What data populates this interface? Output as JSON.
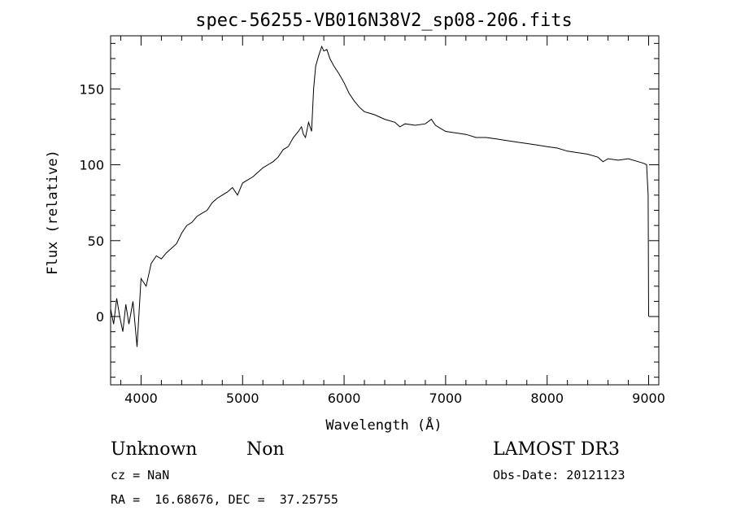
{
  "chart_data": {
    "type": "line",
    "title": "spec-56255-VB016N38V2_sp08-206.fits",
    "xlabel": "Wavelength (Å)",
    "ylabel": "Flux (relative)",
    "xlim": [
      3700,
      9100
    ],
    "ylim": [
      -45,
      185
    ],
    "xticks": [
      4000,
      5000,
      6000,
      7000,
      8000,
      9000
    ],
    "yticks": [
      0,
      50,
      100,
      150
    ],
    "grid": false,
    "series": [
      {
        "color": "#000000",
        "x": [
          3700,
          3730,
          3760,
          3790,
          3820,
          3850,
          3880,
          3920,
          3960,
          4000,
          4050,
          4100,
          4150,
          4200,
          4250,
          4300,
          4350,
          4400,
          4450,
          4500,
          4550,
          4600,
          4650,
          4700,
          4750,
          4800,
          4850,
          4900,
          4950,
          5000,
          5050,
          5100,
          5150,
          5200,
          5250,
          5300,
          5350,
          5400,
          5450,
          5500,
          5550,
          5580,
          5600,
          5620,
          5650,
          5680,
          5700,
          5720,
          5750,
          5780,
          5800,
          5830,
          5860,
          5900,
          5950,
          6000,
          6050,
          6100,
          6150,
          6200,
          6250,
          6300,
          6400,
          6500,
          6550,
          6600,
          6700,
          6800,
          6860,
          6880,
          6900,
          6950,
          7000,
          7100,
          7200,
          7300,
          7400,
          7500,
          7600,
          7700,
          7800,
          7900,
          8000,
          8100,
          8200,
          8300,
          8400,
          8500,
          8550,
          8600,
          8700,
          8800,
          8900,
          8950,
          8980,
          8995,
          9000
        ],
        "y": [
          5,
          -5,
          12,
          0,
          -10,
          8,
          -5,
          10,
          -20,
          25,
          20,
          35,
          40,
          38,
          42,
          45,
          48,
          55,
          60,
          62,
          66,
          68,
          70,
          75,
          78,
          80,
          82,
          85,
          80,
          88,
          90,
          92,
          95,
          98,
          100,
          102,
          105,
          110,
          112,
          118,
          122,
          125,
          120,
          118,
          128,
          122,
          150,
          165,
          172,
          178,
          175,
          176,
          170,
          165,
          160,
          154,
          147,
          142,
          138,
          135,
          134,
          133,
          130,
          128,
          125,
          127,
          126,
          127,
          130,
          128,
          126,
          124,
          122,
          121,
          120,
          118,
          118,
          117,
          116,
          115,
          114,
          113,
          112,
          111,
          109,
          108,
          107,
          105,
          102,
          104,
          103,
          104,
          102,
          101,
          100,
          80,
          0
        ]
      }
    ]
  },
  "info": {
    "class": "Unknown",
    "subclass": "Non",
    "survey": "LAMOST DR3",
    "cz": "cz = NaN",
    "obs_date": "Obs-Date: 20121123",
    "coords": "RA =  16.68676, DEC =  37.25755"
  }
}
